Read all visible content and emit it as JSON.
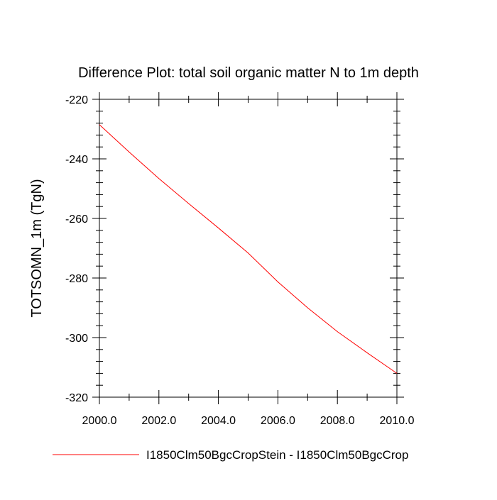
{
  "chart_data": {
    "type": "line",
    "title": "Difference Plot: total soil organic matter N to 1m depth",
    "xlabel": "",
    "ylabel": "TOTSOMN_1m  (TgN)",
    "xlim": [
      2000,
      2010
    ],
    "ylim": [
      -320,
      -220
    ],
    "x_ticks": [
      2000,
      2002,
      2004,
      2006,
      2008,
      2010
    ],
    "x_tick_labels": [
      "2000.0",
      "2002.0",
      "2004.0",
      "2006.0",
      "2008.0",
      "2010.0"
    ],
    "y_ticks": [
      -220,
      -240,
      -260,
      -280,
      -300,
      -320
    ],
    "y_tick_labels": [
      "-220",
      "-240",
      "-260",
      "-280",
      "-300",
      "-320"
    ],
    "grid": false,
    "legend_position": "bottom",
    "series": [
      {
        "name": "I1850Clm50BgcCropStein - I1850Clm50BgcCrop",
        "color": "#ff0000",
        "x": [
          2000,
          2001,
          2002,
          2003,
          2004,
          2005,
          2006,
          2007,
          2008,
          2009,
          2010
        ],
        "values": [
          -228.5,
          -237.7,
          -246.6,
          -255.0,
          -263.2,
          -271.6,
          -281.3,
          -290.0,
          -298.0,
          -305.1,
          -312.0
        ]
      }
    ]
  }
}
